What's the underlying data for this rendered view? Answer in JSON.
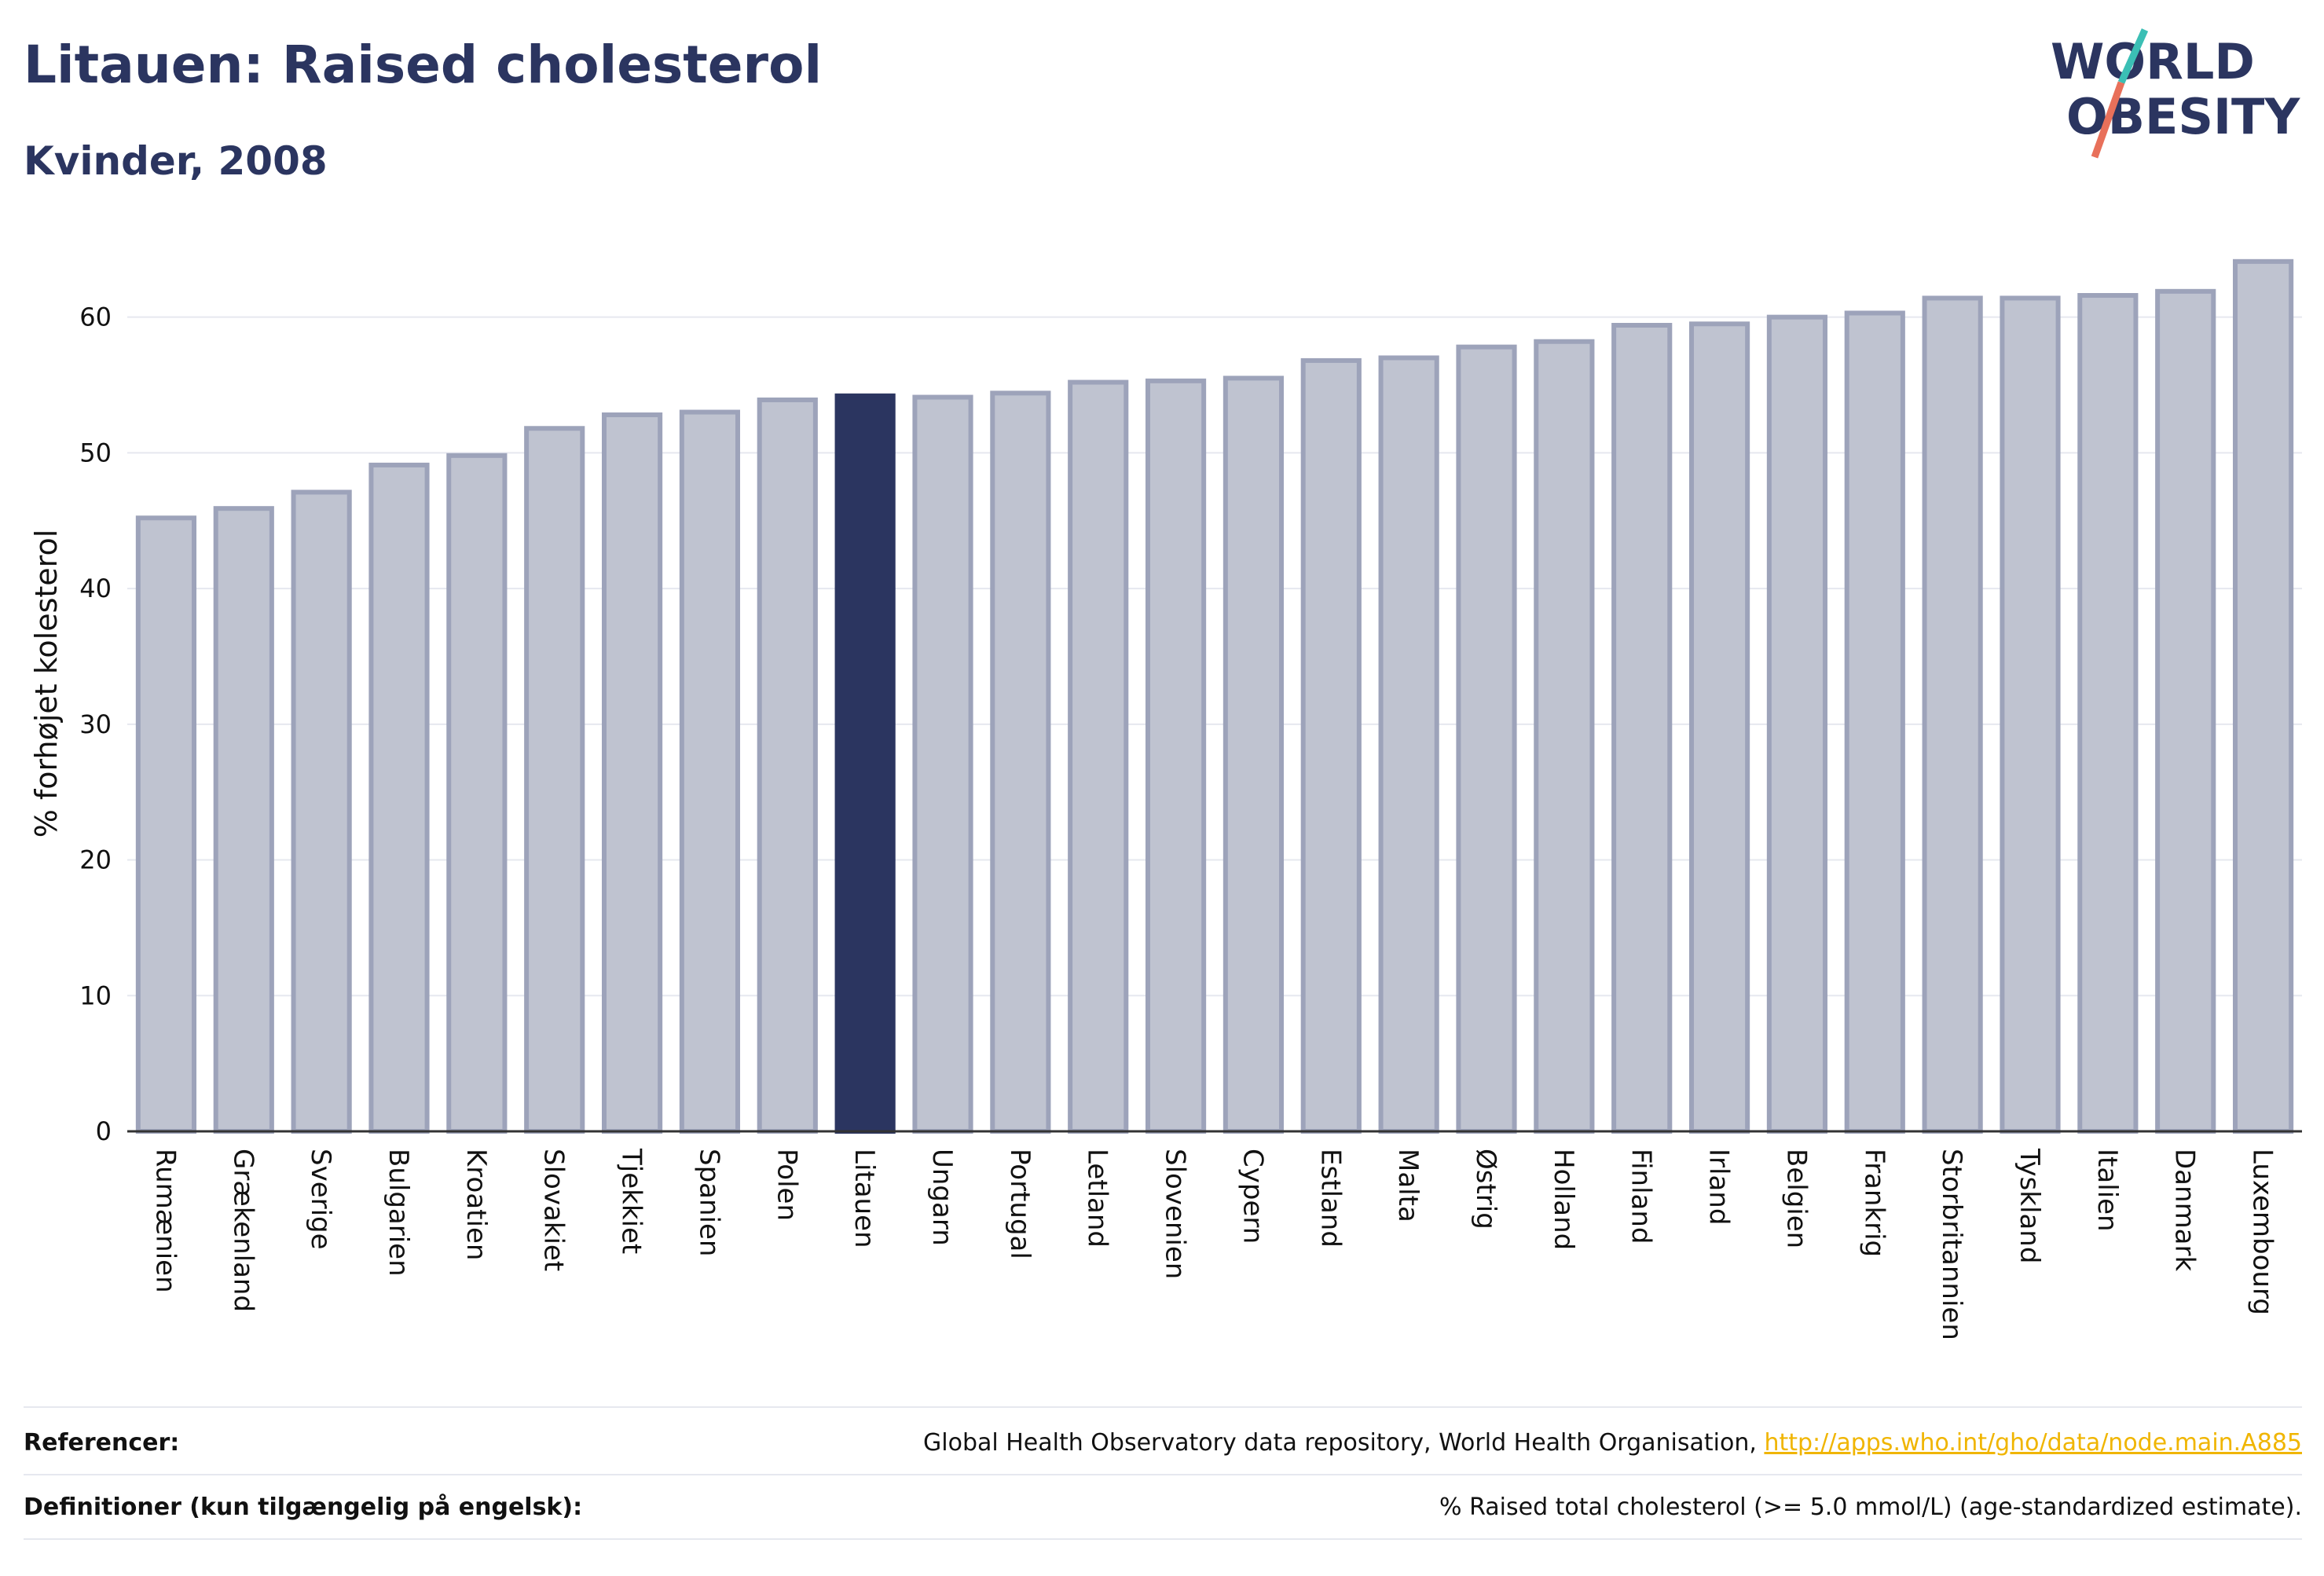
{
  "header": {
    "title": "Litauen: Raised cholesterol",
    "subtitle": "Kvinder, 2008"
  },
  "logo": {
    "line1": "WORLD",
    "line2": "OBESITY"
  },
  "colors": {
    "bar": "#bfc3d0",
    "bar_stroke": "#9da3ba",
    "highlight": "#2b3560",
    "grid": "#e6e8ef"
  },
  "chart_data": {
    "type": "bar",
    "title": "Litauen: Raised cholesterol",
    "subtitle": "Kvinder, 2008",
    "ylabel": "% forhøjet kolesterol",
    "ylim": [
      0,
      66
    ],
    "yticks": [
      0,
      10,
      20,
      30,
      40,
      50,
      60
    ],
    "grid": true,
    "highlight": "Litauen",
    "categories": [
      "Rumænien",
      "Grækenland",
      "Sverige",
      "Bulgarien",
      "Kroatien",
      "Slovakiet",
      "Tjekkiet",
      "Spanien",
      "Polen",
      "Litauen",
      "Ungarn",
      "Portugal",
      "Letland",
      "Slovenien",
      "Cypern",
      "Estland",
      "Malta",
      "Østrig",
      "Holland",
      "Finland",
      "Irland",
      "Belgien",
      "Frankrig",
      "Storbritannien",
      "Tyskland",
      "Italien",
      "Danmark",
      "Luxembourg"
    ],
    "values": [
      45.2,
      45.9,
      47.1,
      49.1,
      49.8,
      51.8,
      52.8,
      53.0,
      53.9,
      54.2,
      54.1,
      54.4,
      55.2,
      55.3,
      55.5,
      56.8,
      57.0,
      57.8,
      58.2,
      59.4,
      59.5,
      60.0,
      60.3,
      61.4,
      61.4,
      61.6,
      61.9,
      64.1
    ]
  },
  "footer": {
    "ref_label": "Referencer:",
    "ref_text": "Global Health Observatory data repository, World Health Organisation, ",
    "ref_link": "http://apps.who.int/gho/data/node.main.A885",
    "def_label": "Definitioner (kun tilgængelig på engelsk):",
    "def_text": "% Raised total cholesterol (>= 5.0 mmol/L) (age-standardized estimate)."
  }
}
